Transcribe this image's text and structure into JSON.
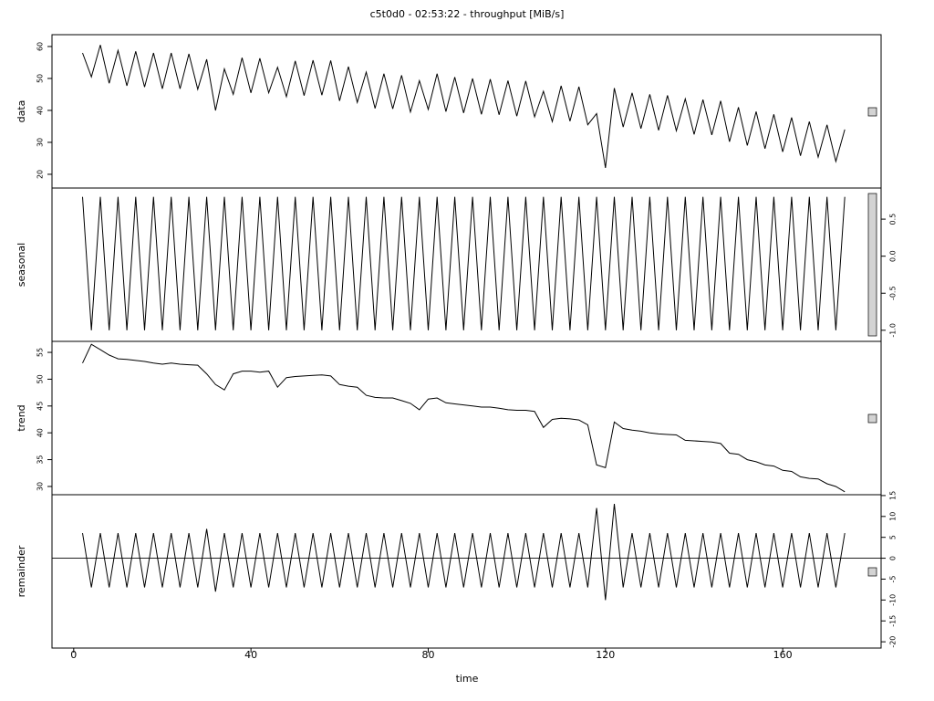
{
  "chart_data": {
    "type": "line",
    "title": "c5t0d0 - 02:53:22 - throughput [MiB/s]",
    "x_label": "time",
    "x": [
      2,
      4,
      6,
      8,
      10,
      12,
      14,
      16,
      18,
      20,
      22,
      24,
      26,
      28,
      30,
      32,
      34,
      36,
      38,
      40,
      42,
      44,
      46,
      48,
      50,
      52,
      54,
      56,
      58,
      60,
      62,
      64,
      66,
      68,
      70,
      72,
      74,
      76,
      78,
      80,
      82,
      84,
      86,
      88,
      90,
      92,
      94,
      96,
      98,
      100,
      102,
      104,
      106,
      108,
      110,
      112,
      114,
      116,
      118,
      120,
      122,
      124,
      126,
      128,
      130,
      132,
      134,
      136,
      138,
      140,
      142,
      144,
      146,
      148,
      150,
      152,
      154,
      156,
      158,
      160,
      162,
      164,
      166,
      168,
      170,
      172,
      174
    ],
    "xlim": [
      -4.9,
      182.2
    ],
    "xticks": [
      0,
      40,
      80,
      120,
      160
    ],
    "series": [
      {
        "name": "data",
        "color": "#000000",
        "axis_side": "left",
        "ylim": [
          15.7,
          63.7
        ],
        "yticks": [
          20,
          30,
          40,
          50,
          60
        ],
        "values": [
          58,
          50.5,
          60.5,
          48.5,
          58.8,
          47.7,
          58.5,
          47.3,
          58,
          46.8,
          58,
          46.8,
          57.7,
          46.6,
          56,
          40,
          53,
          45,
          56.5,
          45.5,
          56.3,
          45.5,
          53.5,
          44.3,
          55.5,
          44.6,
          55.7,
          44.8,
          55.6,
          43,
          53.7,
          42.5,
          52,
          40.6,
          51.5,
          40.5,
          51,
          39.5,
          49.3,
          40.3,
          51.5,
          39.6,
          50.4,
          39.2,
          50,
          38.8,
          49.8,
          38.6,
          49.3,
          38.2,
          49.2,
          38,
          46,
          36.5,
          47.7,
          36.6,
          47.4,
          35.5,
          39,
          22,
          47,
          34.8,
          45.5,
          34.3,
          45,
          33.8,
          44.7,
          33.6,
          43.6,
          32.5,
          43.4,
          32.3,
          43,
          30.2,
          41,
          29,
          39.6,
          28,
          38.8,
          27,
          37.8,
          25.8,
          36.5,
          25.4,
          35.5,
          24,
          34
        ]
      },
      {
        "name": "seasonal",
        "color": "#000000",
        "axis_side": "right",
        "ylim": [
          -1.15,
          0.92
        ],
        "yticks": [
          {
            "value": -1,
            "label": "-1.0"
          },
          -0.5,
          {
            "value": 0,
            "label": "0.0"
          },
          0.5
        ],
        "values": [
          0.8,
          -1,
          0.8,
          -1,
          0.8,
          -1,
          0.8,
          -1,
          0.8,
          -1,
          0.8,
          -1,
          0.8,
          -1,
          0.8,
          -1,
          0.8,
          -1,
          0.8,
          -1,
          0.8,
          -1,
          0.8,
          -1,
          0.8,
          -1,
          0.8,
          -1,
          0.8,
          -1,
          0.8,
          -1,
          0.8,
          -1,
          0.8,
          -1,
          0.8,
          -1,
          0.8,
          -1,
          0.8,
          -1,
          0.8,
          -1,
          0.8,
          -1,
          0.8,
          -1,
          0.8,
          -1,
          0.8,
          -1,
          0.8,
          -1,
          0.8,
          -1,
          0.8,
          -1,
          0.8,
          -1,
          0.8,
          -1,
          0.8,
          -1,
          0.8,
          -1,
          0.8,
          -1,
          0.8,
          -1,
          0.8,
          -1,
          0.8,
          -1,
          0.8,
          -1,
          0.8,
          -1,
          0.8,
          -1,
          0.8,
          -1,
          0.8,
          -1,
          0.8,
          -1,
          0.8
        ]
      },
      {
        "name": "trend",
        "color": "#000000",
        "axis_side": "left",
        "ylim": [
          28.46,
          57.05
        ],
        "yticks": [
          30,
          35,
          40,
          45,
          50,
          55
        ],
        "values": [
          53,
          56.5,
          55.5,
          54.5,
          53.8,
          53.7,
          53.5,
          53.3,
          53,
          52.8,
          53,
          52.8,
          52.7,
          52.6,
          51,
          49,
          48,
          51,
          51.5,
          51.5,
          51.3,
          51.5,
          48.5,
          50.3,
          50.5,
          50.6,
          50.7,
          50.8,
          50.6,
          49,
          48.7,
          48.5,
          47,
          46.6,
          46.5,
          46.5,
          46,
          45.5,
          44.3,
          46.3,
          46.5,
          45.6,
          45.4,
          45.2,
          45,
          44.8,
          44.8,
          44.6,
          44.3,
          44.2,
          44.2,
          44,
          41,
          42.5,
          42.7,
          42.6,
          42.4,
          41.5,
          34,
          33.5,
          42,
          40.8,
          40.5,
          40.3,
          40,
          39.8,
          39.7,
          39.6,
          38.6,
          38.5,
          38.4,
          38.3,
          38,
          36.2,
          36,
          35,
          34.6,
          34,
          33.8,
          33,
          32.8,
          31.8,
          31.5,
          31.4,
          30.5,
          30,
          29
        ]
      },
      {
        "name": "remainder",
        "color": "#000000",
        "axis_side": "right",
        "ylim": [
          -21.5,
          15.2
        ],
        "yticks": [
          -20,
          -15,
          -10,
          -5,
          0,
          5,
          10,
          15
        ],
        "values": [
          6,
          -7,
          6,
          -7,
          6,
          -7,
          6,
          -7,
          6,
          -7,
          6,
          -7,
          6,
          -7,
          7,
          -8,
          6,
          -7,
          6,
          -7,
          6,
          -7,
          6,
          -7,
          6,
          -7,
          6,
          -7,
          6,
          -7,
          6,
          -7,
          6,
          -7,
          6,
          -7,
          6,
          -7,
          6,
          -7,
          6,
          -7,
          6,
          -7,
          6,
          -7,
          6,
          -7,
          6,
          -7,
          6,
          -7,
          6,
          -7,
          6,
          -7,
          6,
          -7,
          12,
          -10,
          13,
          -7,
          6,
          -7,
          6,
          -7,
          6,
          -7,
          6,
          -7,
          6,
          -7,
          6,
          -7,
          6,
          -7,
          6,
          -7,
          6,
          -7,
          6,
          -7,
          6,
          -7,
          6,
          -7,
          6
        ]
      }
    ]
  }
}
